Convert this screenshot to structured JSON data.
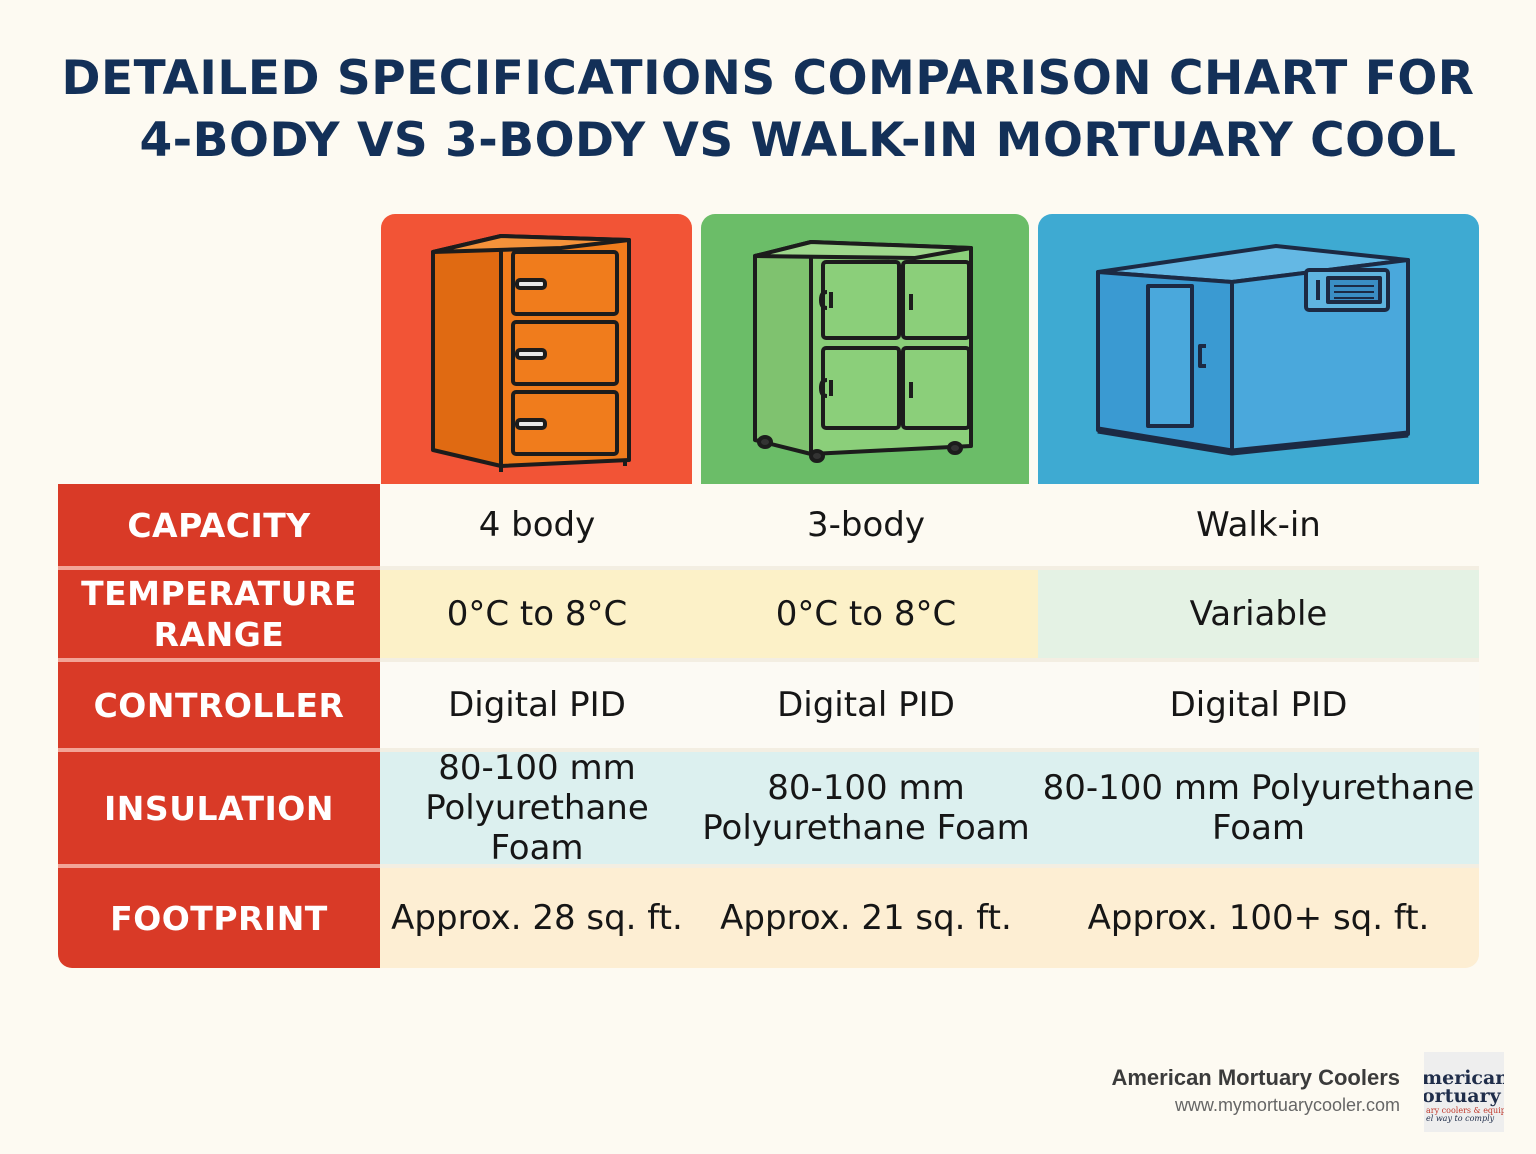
{
  "title": {
    "line1": "DETAILED SPECIFICATIONS COMPARISON CHART FOR",
    "line2": "4-BODY VS 3-BODY VS WALK-IN MORTUARY COOL"
  },
  "columns": [
    {
      "id": "four-body",
      "illustration": "orange-three-door-cabinet",
      "color": "#f25436"
    },
    {
      "id": "three-body",
      "illustration": "green-four-door-cabinet",
      "color": "#6bbd68"
    },
    {
      "id": "walk-in",
      "illustration": "blue-walk-in-cooler",
      "color": "#3eaad2"
    }
  ],
  "rows": [
    {
      "label": "CAPACITY",
      "values": [
        "4 body",
        "3-body",
        "Walk-in"
      ]
    },
    {
      "label": "TEMPERATURE RANGE",
      "values": [
        "0°C to 8°C",
        "0°C to 8°C",
        "Variable"
      ]
    },
    {
      "label": "CONTROLLER",
      "values": [
        "Digital PID",
        "Digital PID",
        "Digital PID"
      ]
    },
    {
      "label": "INSULATION",
      "values": [
        "80-100 mm Polyurethane Foam",
        "80-100 mm Polyurethane Foam",
        "80-100 mm Polyurethane Foam"
      ]
    },
    {
      "label": "FOOTPRINT",
      "values": [
        "Approx. 28 sq. ft.",
        "Approx. 21 sq. ft.",
        "Approx. 100+ sq. ft."
      ]
    }
  ],
  "brand": {
    "name": "American Mortuary Coolers",
    "url": "www.mymortuarycooler.com",
    "logo_lines": [
      "merican",
      "ortuary",
      "ary coolers & equipment",
      "el way to comply"
    ]
  },
  "colors": {
    "label_bg": "#d93a27",
    "title": "#133058",
    "row_temp_a": "#fcf1c8",
    "row_temp_b": "#e4f2e4",
    "row_insulation": "#dcf0ef",
    "row_footprint": "#fdeed3"
  }
}
